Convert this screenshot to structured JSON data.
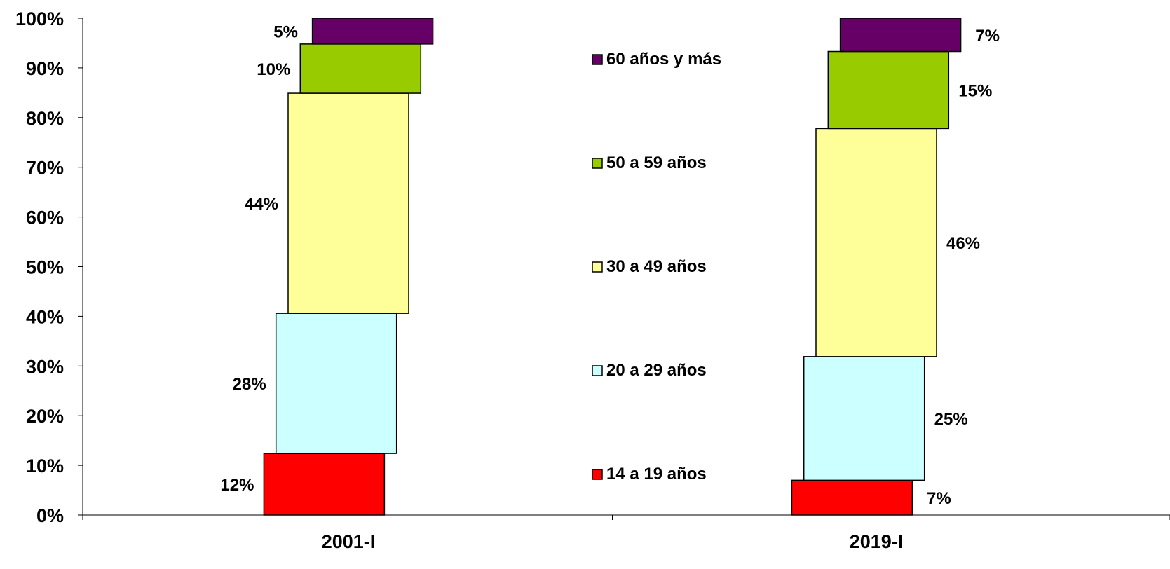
{
  "chart_data": {
    "type": "bar",
    "stacked": true,
    "stack_offset": "staggered",
    "title": "",
    "xlabel": "",
    "ylabel": "",
    "ylim": [
      0,
      100
    ],
    "y_unit": "%",
    "y_ticks": [
      "0%",
      "10%",
      "20%",
      "30%",
      "40%",
      "50%",
      "60%",
      "70%",
      "80%",
      "90%",
      "100%"
    ],
    "categories": [
      "2001-I",
      "2019-I"
    ],
    "grid": false,
    "legend_position": "center",
    "series": [
      {
        "name": "14 a 19 años",
        "color": "#FF0000",
        "values": [
          12.4,
          7.0
        ],
        "labels": [
          "12%",
          "7%"
        ]
      },
      {
        "name": "20 a 29 años",
        "color": "#CCFFFF",
        "values": [
          28.2,
          24.9
        ],
        "labels": [
          "28%",
          "25%"
        ]
      },
      {
        "name": "30 a 49 años",
        "color": "#FFFF99",
        "values": [
          44.3,
          45.9
        ],
        "labels": [
          "44%",
          "46%"
        ]
      },
      {
        "name": "50 a 59 años",
        "color": "#99CC00",
        "values": [
          9.9,
          15.5
        ],
        "labels": [
          "10%",
          "15%"
        ]
      },
      {
        "name": "60 años y más",
        "color": "#660066",
        "values": [
          5.2,
          6.7
        ],
        "labels": [
          "5%",
          "7%"
        ]
      }
    ],
    "legend_order": [
      "60 años y más",
      "50 a 59 años",
      "30 a 49 años",
      "20 a 29 años",
      "14 a 19 años"
    ]
  }
}
